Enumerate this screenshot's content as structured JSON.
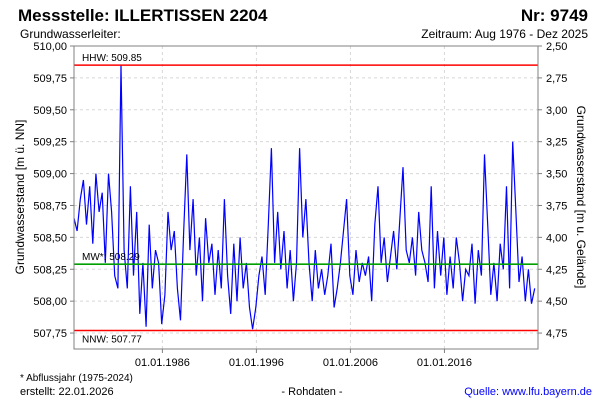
{
  "header": {
    "title": "Messstelle: ILLERTISSEN 2204",
    "number": "Nr: 9749",
    "aquifer": "Grundwasserleiter:",
    "period": "Zeitraum: Aug 1976 - Dez 2025"
  },
  "footer": {
    "note": "* Abflussjahr (1975-2024)",
    "created": "erstellt:  22.01.2026",
    "mode": "- Rohdaten -",
    "source": "Quelle: www.lfu.bayern.de"
  },
  "colors": {
    "series": "#0000ff",
    "hhw": "#ff0000",
    "nnw": "#ff0000",
    "mw": "#00a000",
    "grid": "#d8d8d8"
  },
  "chart_data": {
    "type": "line",
    "title": "Messstelle: ILLERTISSEN 2204",
    "ylabel": "Grundwasserstand [m ü. NN]",
    "y2label": "Grundwasserstand [m u. Gelände]",
    "xlim": [
      1976.6,
      2025.95
    ],
    "ylim": [
      507.625,
      510.0
    ],
    "y2_offset": 512.5,
    "grid": true,
    "yticks": [
      510.0,
      509.75,
      509.5,
      509.25,
      509.0,
      508.75,
      508.5,
      508.25,
      508.0,
      507.75
    ],
    "ytick_labels": [
      "510,00",
      "509,75",
      "509,50",
      "509,25",
      "509,00",
      "508,75",
      "508,50",
      "508,25",
      "508,00",
      "507,75"
    ],
    "y2tick_labels": [
      "2,50",
      "2,75",
      "3,00",
      "3,25",
      "3,50",
      "3,75",
      "4,00",
      "4,25",
      "4,50",
      "4,75"
    ],
    "xticks": [
      1986.0,
      1996.0,
      2006.0,
      2016.0
    ],
    "xtick_labels": [
      "01.01.1986",
      "01.01.1996",
      "01.01.2006",
      "01.01.2016"
    ],
    "reference_lines": [
      {
        "name": "HHW",
        "label": "HHW: 509.85",
        "value": 509.85
      },
      {
        "name": "MW",
        "label": "MW*: 508.29",
        "value": 508.29
      },
      {
        "name": "NNW",
        "label": "NNW: 507.77",
        "value": 507.77
      }
    ],
    "series": [
      {
        "name": "Grundwasserstand",
        "x_start": 1976.6,
        "x_step": 0.3333,
        "values": [
          508.65,
          508.55,
          508.8,
          508.95,
          508.6,
          508.9,
          508.45,
          509.0,
          508.7,
          508.85,
          508.3,
          509.0,
          508.7,
          508.2,
          508.1,
          509.85,
          508.4,
          508.1,
          508.9,
          508.2,
          508.7,
          507.9,
          508.3,
          507.8,
          508.6,
          508.1,
          508.4,
          508.3,
          507.82,
          508.05,
          508.7,
          508.4,
          508.55,
          508.1,
          507.85,
          508.55,
          509.15,
          508.4,
          508.8,
          508.2,
          508.5,
          508.0,
          508.65,
          508.3,
          508.45,
          508.05,
          508.4,
          508.1,
          508.8,
          508.2,
          507.9,
          508.45,
          508.0,
          508.5,
          508.1,
          508.3,
          507.95,
          507.78,
          507.95,
          508.2,
          508.35,
          508.05,
          508.6,
          509.2,
          508.3,
          508.7,
          508.25,
          508.55,
          508.1,
          508.4,
          508.0,
          508.3,
          509.2,
          508.5,
          508.8,
          508.3,
          508.0,
          508.4,
          508.1,
          508.25,
          508.05,
          508.2,
          508.45,
          507.95,
          508.1,
          508.3,
          508.55,
          508.8,
          508.2,
          508.05,
          508.4,
          508.15,
          508.3,
          508.2,
          508.35,
          508.0,
          508.6,
          508.9,
          508.3,
          508.5,
          508.15,
          508.35,
          508.55,
          508.25,
          508.65,
          509.05,
          508.4,
          508.3,
          508.5,
          508.2,
          508.7,
          508.4,
          508.3,
          508.15,
          508.9,
          508.1,
          508.55,
          508.2,
          508.5,
          508.05,
          508.35,
          508.1,
          508.5,
          508.3,
          508.0,
          508.25,
          508.2,
          508.45,
          507.98,
          508.4,
          508.2,
          509.15,
          508.6,
          508.05,
          508.3,
          508.0,
          508.45,
          508.25,
          508.9,
          508.1,
          509.25,
          508.7,
          508.15,
          508.35,
          508.0,
          508.25,
          507.98,
          508.1
        ]
      }
    ]
  }
}
